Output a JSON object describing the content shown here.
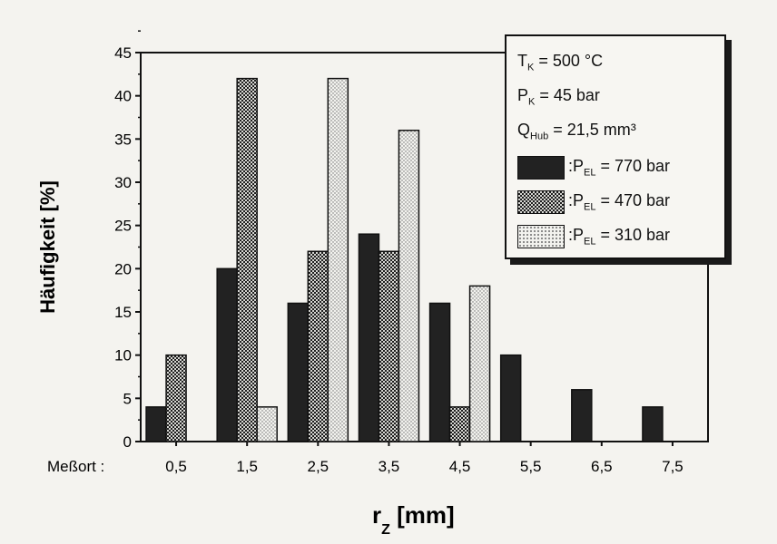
{
  "chart_data": {
    "type": "bar",
    "categories": [
      "0,5",
      "1,5",
      "2,5",
      "3,5",
      "4,5",
      "5,5",
      "6,5",
      "7,5"
    ],
    "category_label": "Meßort :",
    "series": [
      {
        "name": "770 bar",
        "label_prefix": ":P",
        "label_sub": "EL",
        "label_eq": " = 770 bar",
        "values": [
          4,
          20,
          16,
          24,
          16,
          10,
          6,
          4
        ],
        "color": "#222222",
        "pattern": "solid"
      },
      {
        "name": "470 bar",
        "label_prefix": ":P",
        "label_sub": "EL",
        "label_eq": " = 470 bar",
        "values": [
          10,
          42,
          22,
          22,
          4,
          0,
          0,
          0
        ],
        "color": "#555555",
        "pattern": "checker"
      },
      {
        "name": "310 bar",
        "label_prefix": ":P",
        "label_sub": "EL",
        "label_eq": " = 310 bar",
        "values": [
          0,
          4,
          42,
          36,
          18,
          0,
          0,
          0
        ],
        "color": "#eeeeea",
        "pattern": "dots"
      }
    ],
    "ylabel": "Häufigkeit [%]",
    "xlabel_main": "r",
    "xlabel_sub": "Z",
    "xlabel_unit": " [mm]",
    "ylim": [
      0,
      45
    ],
    "yticks": [
      0,
      5,
      10,
      15,
      20,
      25,
      30,
      35,
      40,
      45
    ],
    "grid": false,
    "legend_position": "top-right",
    "conditions": [
      {
        "main": "T",
        "sub": "K",
        "rest": " = 500 °C"
      },
      {
        "main": "P",
        "sub": "K",
        "rest": " = 45 bar"
      },
      {
        "main": "Q",
        "sub": "Hub",
        "rest": " = 21,5 mm³"
      }
    ]
  }
}
